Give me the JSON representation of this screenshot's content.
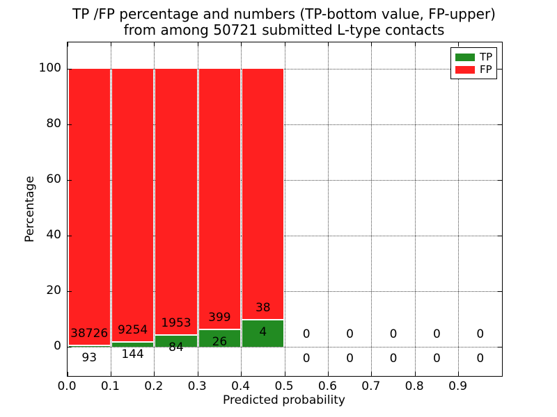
{
  "figure": {
    "title_line1": "TP /FP percentage and numbers (TP-bottom value, FP-upper)",
    "title_line2": "from among 50721 submitted L-type contacts"
  },
  "chart_data": {
    "type": "bar",
    "stacked": true,
    "title": "TP /FP percentage and numbers (TP-bottom value, FP-upper)\nfrom among 50721 submitted L-type contacts",
    "xlabel": "Predicted probability",
    "ylabel": "Percentage",
    "xlim": [
      0.0,
      1.0
    ],
    "ylim": [
      -10.5,
      109.5
    ],
    "xtick_labels": [
      "0.0",
      "0.1",
      "0.2",
      "0.3",
      "0.4",
      "0.5",
      "0.6",
      "0.7",
      "0.8",
      "0.9"
    ],
    "ytick_values": [
      0,
      20,
      40,
      60,
      80,
      100
    ],
    "grid": true,
    "grid_linestyle": "dotted",
    "background": "#ffffff",
    "bin_width": 0.1,
    "total_contacts": 50721,
    "categories": [
      "0.0-0.1",
      "0.1-0.2",
      "0.2-0.3",
      "0.3-0.4",
      "0.4-0.5",
      "0.5-0.6",
      "0.6-0.7",
      "0.7-0.8",
      "0.8-0.9",
      "0.9-1.0"
    ],
    "series": [
      {
        "name": "TP",
        "color": "#228B22",
        "counts": [
          93,
          144,
          84,
          26,
          4,
          0,
          0,
          0,
          0,
          0
        ],
        "percentages": [
          0.24,
          1.53,
          4.12,
          6.12,
          9.52,
          0,
          0,
          0,
          0,
          0
        ]
      },
      {
        "name": "FP",
        "color": "#FF2020",
        "counts": [
          38726,
          9254,
          1953,
          399,
          38,
          0,
          0,
          0,
          0,
          0
        ],
        "percentages": [
          99.76,
          98.47,
          95.88,
          93.88,
          90.48,
          0,
          0,
          0,
          0,
          0
        ]
      }
    ],
    "legend": {
      "position": "upper right",
      "entries": [
        {
          "label": "TP",
          "color": "#228B22"
        },
        {
          "label": "FP",
          "color": "#FF2020"
        }
      ]
    }
  }
}
